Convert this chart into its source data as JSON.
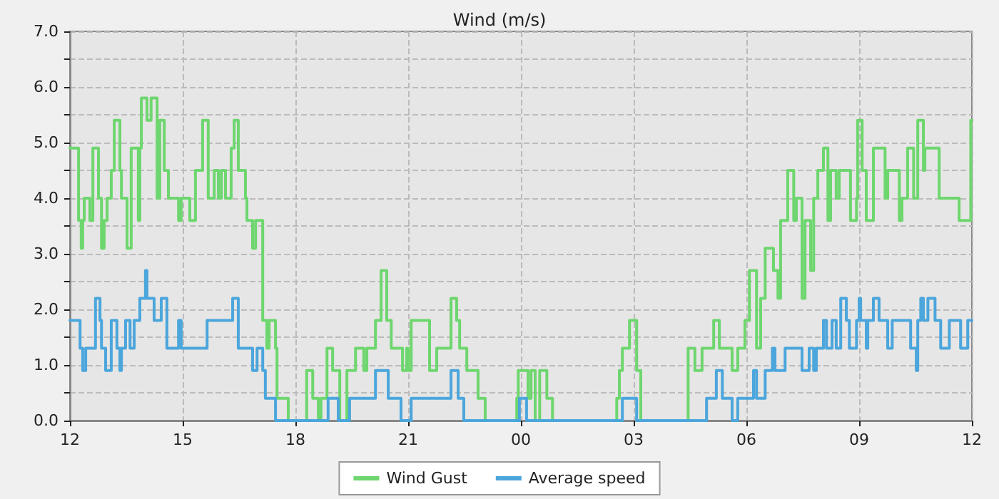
{
  "chart_data": {
    "type": "step",
    "title": "Wind (m/s)",
    "legend": "bottom",
    "grid": true,
    "marker": "none",
    "line_style": "solid",
    "xlim": [
      12,
      36
    ],
    "xticks": [
      {
        "value": 12,
        "label": "12"
      },
      {
        "value": 15,
        "label": "15"
      },
      {
        "value": 18,
        "label": "18"
      },
      {
        "value": 21,
        "label": "21"
      },
      {
        "value": 24,
        "label": "00"
      },
      {
        "value": 27,
        "label": "03"
      },
      {
        "value": 30,
        "label": "06"
      },
      {
        "value": 33,
        "label": "09"
      },
      {
        "value": 36,
        "label": "12"
      }
    ],
    "ylim": [
      0,
      7
    ],
    "yticks": [
      {
        "value": 0,
        "label": "0.0"
      },
      {
        "value": 0.5,
        "label": null
      },
      {
        "value": 1,
        "label": "1.0"
      },
      {
        "value": 1.5,
        "label": null
      },
      {
        "value": 2,
        "label": "2.0"
      },
      {
        "value": 2.5,
        "label": null
      },
      {
        "value": 3,
        "label": "3.0"
      },
      {
        "value": 3.5,
        "label": null
      },
      {
        "value": 4,
        "label": "4.0"
      },
      {
        "value": 4.5,
        "label": null
      },
      {
        "value": 5,
        "label": "5.0"
      },
      {
        "value": 5.5,
        "label": null
      },
      {
        "value": 6,
        "label": "6.0"
      },
      {
        "value": 6.5,
        "label": null
      },
      {
        "value": 7,
        "label": "7.0"
      }
    ],
    "series": [
      {
        "name": "Wind Gust",
        "color": "#6ed66e",
        "x": [
          12,
          12.23,
          12.3,
          12.34,
          12.38,
          12.53,
          12.61,
          12.76,
          12.84,
          12.91,
          12.99,
          13.1,
          13.18,
          13.33,
          13.37,
          13.52,
          13.63,
          13.82,
          13.86,
          13.9,
          14.05,
          14.16,
          14.32,
          14.39,
          14.51,
          14.62,
          14.89,
          14.96,
          15.19,
          15.34,
          15.53,
          15.68,
          15.84,
          15.95,
          16.03,
          16.14,
          16.29,
          16.37,
          16.48,
          16.67,
          16.71,
          16.86,
          16.94,
          17.13,
          17.24,
          17.3,
          17.47,
          17.51,
          17.81,
          18.3,
          18.46,
          18.61,
          18.68,
          18.84,
          18.99,
          19.18,
          19.37,
          19.6,
          19.82,
          19.9,
          20.13,
          20.28,
          20.43,
          20.55,
          20.85,
          20.96,
          21,
          21.08,
          21.57,
          21.76,
          22.14,
          22.29,
          22.37,
          22.56,
          22.86,
          23.05,
          23.89,
          23.93,
          24.19,
          24.27,
          24.38,
          24.5,
          24.69,
          24.84,
          26.55,
          26.62,
          26.7,
          26.89,
          27.08,
          27.19,
          28.45,
          28.63,
          28.82,
          29.13,
          29.28,
          29.62,
          29.77,
          29.96,
          30.08,
          30.27,
          30.38,
          30.5,
          30.72,
          30.84,
          30.91,
          31.1,
          31.26,
          31.33,
          31.48,
          31.56,
          31.71,
          31.79,
          31.9,
          32.05,
          32.17,
          32.24,
          32.39,
          32.47,
          32.77,
          32.93,
          32.96,
          33.08,
          33.19,
          33.38,
          33.69,
          33.76,
          34.07,
          34.14,
          34.29,
          34.45,
          34.56,
          34.71,
          34.75,
          35.13,
          35.66,
          35.97,
          36
        ],
        "values": [
          4.9,
          3.6,
          3.1,
          3.6,
          4.0,
          3.6,
          4.9,
          4.0,
          3.1,
          3.6,
          4.0,
          4.5,
          5.4,
          4.5,
          4.0,
          3.1,
          4.9,
          3.6,
          4.9,
          5.8,
          5.4,
          5.8,
          4.0,
          5.4,
          4.5,
          4.0,
          3.6,
          4.0,
          3.6,
          4.5,
          5.4,
          4.0,
          4.5,
          4.0,
          4.5,
          4.0,
          4.9,
          5.4,
          4.5,
          4.0,
          3.6,
          3.1,
          3.6,
          1.8,
          1.3,
          1.8,
          1.3,
          0.4,
          0,
          0.9,
          0.4,
          0,
          0.4,
          1.3,
          0.9,
          0,
          0.9,
          1.3,
          0.9,
          1.3,
          1.8,
          2.7,
          1.8,
          1.3,
          0.9,
          1.3,
          0.9,
          1.8,
          0.9,
          1.3,
          2.2,
          1.8,
          1.3,
          0.9,
          0.4,
          0,
          0.4,
          0.9,
          0.4,
          0.9,
          0,
          0.9,
          0.4,
          0,
          0.4,
          0.9,
          1.3,
          1.8,
          0.9,
          0,
          1.3,
          0.9,
          1.3,
          1.8,
          1.3,
          0.9,
          1.3,
          1.8,
          2.7,
          1.3,
          2.2,
          3.1,
          2.7,
          2.2,
          3.6,
          4.5,
          3.6,
          4.0,
          2.2,
          3.6,
          2.7,
          4.0,
          4.5,
          4.9,
          3.6,
          4.5,
          4.0,
          4.5,
          3.6,
          4.0,
          5.4,
          4.5,
          3.6,
          4.9,
          4.0,
          4.5,
          3.6,
          4.0,
          4.9,
          4.0,
          5.4,
          4.5,
          4.9,
          4.0,
          3.6,
          5.4,
          5.4
        ]
      },
      {
        "name": "Average speed",
        "color": "#4ba6dc",
        "x": [
          12,
          12.27,
          12.34,
          12.42,
          12.68,
          12.8,
          12.84,
          12.95,
          13.1,
          13.25,
          13.33,
          13.37,
          13.48,
          13.6,
          13.71,
          13.86,
          14.01,
          14.05,
          14.24,
          14.43,
          14.58,
          14.89,
          14.96,
          15.65,
          16.33,
          16.48,
          16.86,
          16.98,
          17.13,
          17.2,
          17.47,
          18.87,
          19.14,
          19.44,
          20.13,
          20.47,
          20.81,
          21.08,
          22.14,
          22.33,
          22.48,
          23.96,
          24.15,
          26.7,
          27.08,
          28.94,
          29.2,
          29.36,
          29.62,
          29.77,
          30.19,
          30.27,
          30.5,
          30.69,
          30.76,
          31.03,
          31.48,
          31.67,
          31.79,
          31.86,
          32.05,
          32.13,
          32.28,
          32.39,
          32.51,
          32.66,
          32.74,
          32.93,
          33,
          33.04,
          33.19,
          33.23,
          33.38,
          33.53,
          33.76,
          33.88,
          34.37,
          34.52,
          34.56,
          34.64,
          34.71,
          34.83,
          35.02,
          35.17,
          35.4,
          35.7,
          35.89,
          36
        ],
        "values": [
          1.8,
          1.3,
          0.9,
          1.3,
          2.2,
          1.8,
          1.3,
          0.9,
          1.8,
          1.3,
          0.9,
          1.3,
          1.8,
          1.3,
          1.8,
          2.2,
          2.7,
          2.2,
          1.8,
          2.2,
          1.3,
          1.8,
          1.3,
          1.8,
          2.2,
          1.3,
          0.9,
          1.3,
          0.9,
          0.4,
          0,
          0.4,
          0,
          0.4,
          0.9,
          0.4,
          0,
          0.4,
          0.9,
          0.4,
          0,
          0.4,
          0,
          0.4,
          0,
          0.4,
          0.9,
          0.4,
          0,
          0.4,
          0.9,
          0.4,
          0.9,
          1.3,
          0.9,
          1.3,
          0.9,
          1.3,
          0.9,
          1.3,
          1.8,
          1.3,
          1.8,
          1.3,
          2.2,
          1.8,
          1.3,
          1.8,
          2.2,
          1.8,
          1.3,
          1.8,
          2.2,
          1.8,
          1.3,
          1.8,
          1.3,
          0.9,
          1.8,
          2.2,
          1.8,
          2.2,
          1.8,
          1.3,
          1.8,
          1.3,
          1.8,
          1.8
        ]
      }
    ]
  }
}
